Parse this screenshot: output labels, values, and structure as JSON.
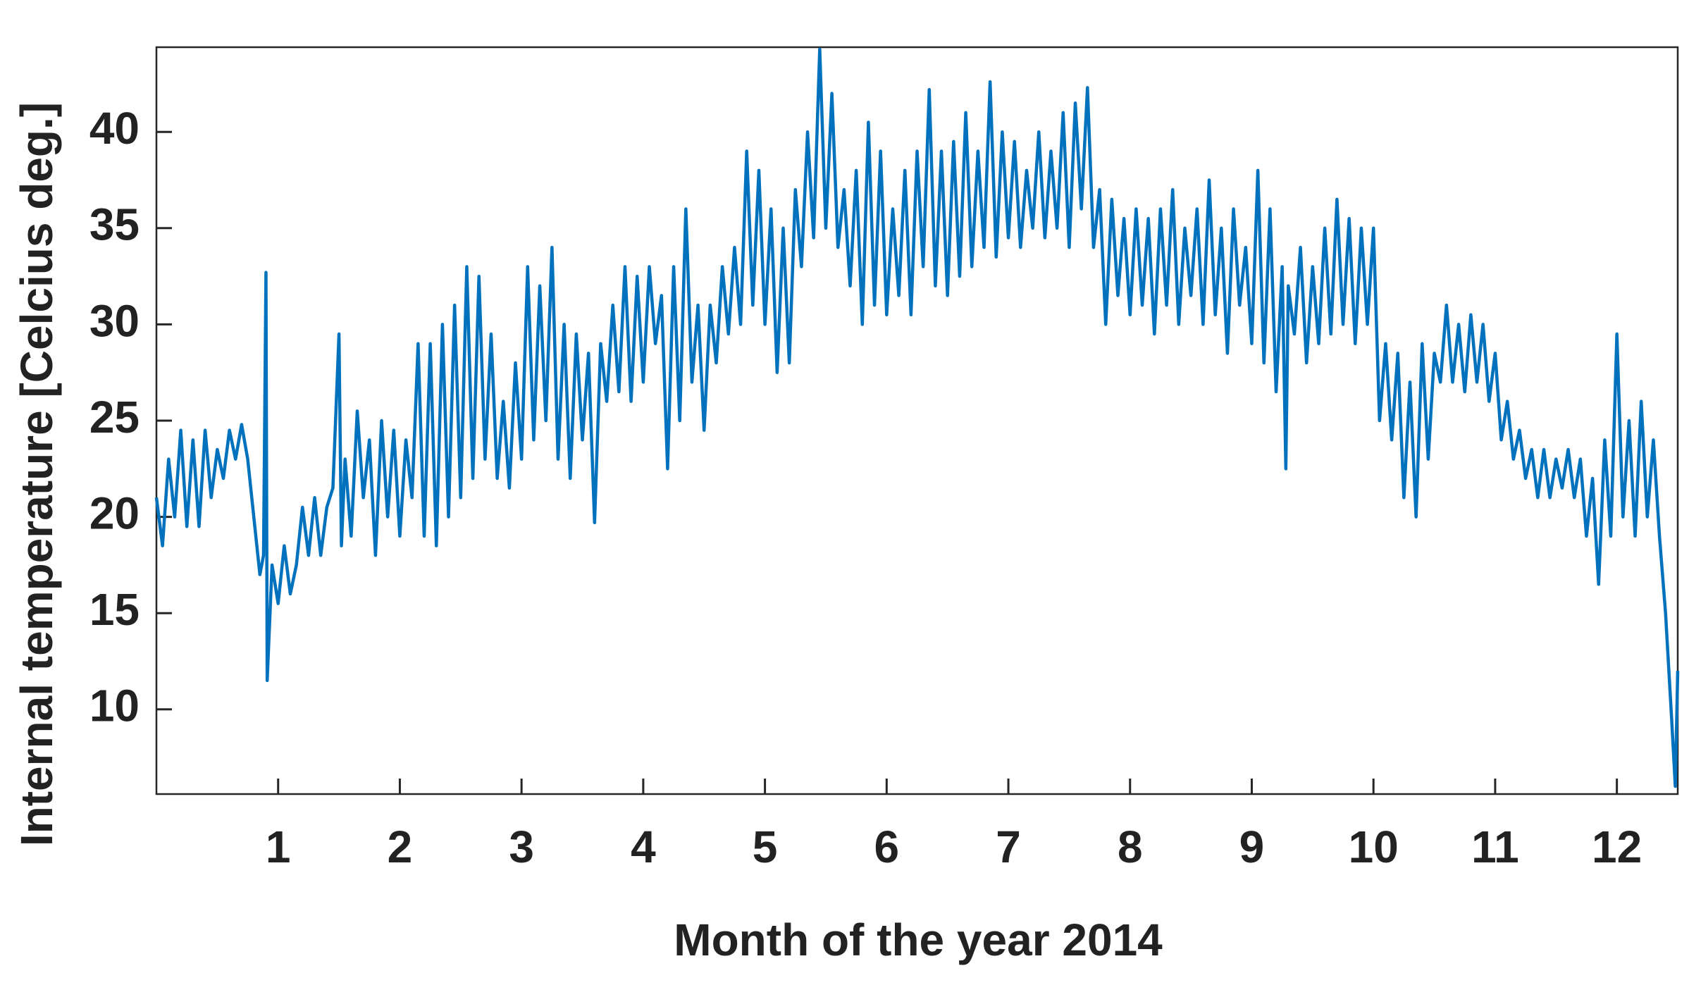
{
  "chart_data": {
    "type": "line",
    "xlabel": "Month of the year 2014",
    "ylabel": "Internal temperature [Celcius deg.]",
    "color": "#0072bd",
    "xlim": [
      0,
      12.5
    ],
    "xticks": [
      1,
      2,
      3,
      4,
      5,
      6,
      7,
      8,
      9,
      10,
      11,
      12
    ],
    "ylim": [
      5.6,
      44.4
    ],
    "yticks": [
      10,
      15,
      20,
      25,
      30,
      35,
      40
    ],
    "x": [
      0,
      0.05,
      0.1,
      0.15,
      0.2,
      0.25,
      0.3,
      0.35,
      0.4,
      0.45,
      0.5,
      0.55,
      0.6,
      0.65,
      0.7,
      0.75,
      0.8,
      0.85,
      0.88,
      0.9,
      0.91,
      0.95,
      1.0,
      1.05,
      1.1,
      1.15,
      1.2,
      1.25,
      1.3,
      1.35,
      1.4,
      1.45,
      1.5,
      1.52,
      1.55,
      1.6,
      1.65,
      1.7,
      1.75,
      1.8,
      1.85,
      1.9,
      1.95,
      2.0,
      2.05,
      2.1,
      2.15,
      2.2,
      2.25,
      2.3,
      2.35,
      2.4,
      2.45,
      2.5,
      2.55,
      2.6,
      2.65,
      2.7,
      2.75,
      2.8,
      2.85,
      2.9,
      2.95,
      3.0,
      3.05,
      3.1,
      3.15,
      3.2,
      3.25,
      3.3,
      3.35,
      3.4,
      3.45,
      3.5,
      3.55,
      3.6,
      3.65,
      3.7,
      3.75,
      3.8,
      3.85,
      3.9,
      3.95,
      4.0,
      4.05,
      4.1,
      4.15,
      4.2,
      4.25,
      4.3,
      4.35,
      4.4,
      4.45,
      4.5,
      4.55,
      4.6,
      4.65,
      4.7,
      4.75,
      4.8,
      4.85,
      4.9,
      4.95,
      5.0,
      5.05,
      5.1,
      5.15,
      5.2,
      5.25,
      5.3,
      5.35,
      5.4,
      5.45,
      5.5,
      5.55,
      5.6,
      5.65,
      5.7,
      5.75,
      5.8,
      5.85,
      5.9,
      5.95,
      6.0,
      6.05,
      6.1,
      6.15,
      6.2,
      6.25,
      6.3,
      6.35,
      6.4,
      6.45,
      6.5,
      6.55,
      6.6,
      6.65,
      6.7,
      6.75,
      6.8,
      6.85,
      6.9,
      6.95,
      7.0,
      7.05,
      7.1,
      7.15,
      7.2,
      7.25,
      7.3,
      7.35,
      7.4,
      7.45,
      7.5,
      7.55,
      7.6,
      7.65,
      7.7,
      7.75,
      7.8,
      7.85,
      7.9,
      7.95,
      8.0,
      8.05,
      8.1,
      8.15,
      8.2,
      8.25,
      8.3,
      8.35,
      8.4,
      8.45,
      8.5,
      8.55,
      8.6,
      8.65,
      8.7,
      8.75,
      8.8,
      8.85,
      8.9,
      8.95,
      9.0,
      9.05,
      9.1,
      9.15,
      9.2,
      9.25,
      9.28,
      9.3,
      9.35,
      9.4,
      9.45,
      9.5,
      9.55,
      9.6,
      9.65,
      9.7,
      9.75,
      9.8,
      9.85,
      9.9,
      9.95,
      10.0,
      10.05,
      10.1,
      10.15,
      10.2,
      10.25,
      10.3,
      10.35,
      10.4,
      10.45,
      10.5,
      10.55,
      10.6,
      10.65,
      10.7,
      10.75,
      10.8,
      10.85,
      10.9,
      10.95,
      11.0,
      11.05,
      11.1,
      11.15,
      11.2,
      11.25,
      11.3,
      11.35,
      11.4,
      11.45,
      11.5,
      11.55,
      11.6,
      11.65,
      11.7,
      11.75,
      11.8,
      11.85,
      11.9,
      11.95,
      12.0,
      12.05,
      12.1,
      12.15,
      12.2,
      12.25,
      12.3,
      12.35,
      12.4,
      12.45,
      12.48,
      12.5
    ],
    "values": [
      21,
      18.5,
      23,
      20,
      24.5,
      19.5,
      24,
      19.5,
      24.5,
      21,
      23.5,
      22,
      24.5,
      23,
      24.8,
      23,
      20,
      17,
      18,
      32.7,
      11.5,
      17.5,
      15.5,
      18.5,
      16,
      17.5,
      20.5,
      18,
      21,
      18,
      20.5,
      21.5,
      29.5,
      18.5,
      23,
      19,
      25.5,
      21,
      24,
      18,
      25,
      20,
      24.5,
      19,
      24,
      21,
      29,
      19,
      29,
      18.5,
      30,
      20,
      31,
      21,
      33,
      22,
      32.5,
      23,
      29.5,
      22,
      26,
      21.5,
      28,
      23,
      33,
      24,
      32,
      25,
      34,
      23,
      30,
      22,
      29.5,
      24,
      28.5,
      19.7,
      29,
      26,
      31,
      26.5,
      33,
      26,
      32.5,
      27,
      33,
      29,
      31.5,
      22.5,
      33,
      25,
      36,
      27,
      31,
      24.5,
      31,
      28,
      33,
      29.5,
      34,
      30,
      39,
      31,
      38,
      30,
      36,
      27.5,
      35,
      28,
      37,
      33,
      40,
      34.5,
      44.3,
      35,
      42,
      34,
      37,
      32,
      38,
      30,
      40.5,
      31,
      39,
      30.5,
      36,
      31.5,
      38,
      30.5,
      39,
      33,
      42.2,
      32,
      39,
      31.5,
      39.5,
      32.5,
      41,
      33,
      39,
      34,
      42.6,
      33.5,
      40,
      34.5,
      39.5,
      34,
      38,
      35,
      40,
      34.5,
      39,
      35,
      41,
      34,
      41.5,
      36,
      42.3,
      34,
      37,
      30,
      36.5,
      31.5,
      35.5,
      30.5,
      36,
      31,
      35.5,
      29.5,
      36,
      31,
      37,
      30,
      35,
      31.5,
      36,
      30,
      37.5,
      30.5,
      35,
      28.5,
      36,
      31,
      34,
      29,
      38,
      28,
      36,
      26.5,
      33,
      22.5,
      32,
      29.5,
      34,
      28,
      33,
      29,
      35,
      29.5,
      36.5,
      30,
      35.5,
      29,
      35,
      30,
      35,
      25,
      29,
      24,
      28.5,
      21,
      27,
      20,
      29,
      23,
      28.5,
      27,
      31,
      27,
      30,
      26.5,
      30.5,
      27,
      30,
      26,
      28.5,
      24,
      26,
      23,
      24.5,
      22,
      23.5,
      21,
      23.5,
      21,
      23,
      21.5,
      23.5,
      21,
      23,
      19,
      22,
      16.5,
      24,
      19,
      29.5,
      20,
      25,
      19,
      26,
      20,
      24,
      19,
      15,
      9.5,
      6,
      12
    ]
  }
}
